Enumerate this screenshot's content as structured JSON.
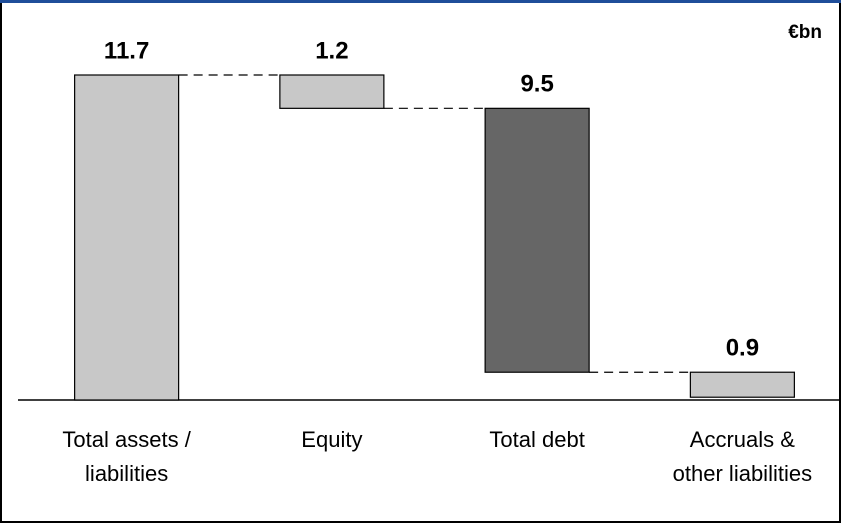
{
  "chart_data": {
    "type": "waterfall",
    "unit_label": "€bn",
    "categories": [
      [
        "Total assets /",
        "liabilities"
      ],
      [
        "Equity"
      ],
      [
        "Total debt"
      ],
      [
        "Accruals &",
        "other liabilities"
      ]
    ],
    "values": [
      11.7,
      1.2,
      9.5,
      0.9
    ],
    "colors": [
      "#c8c8c8",
      "#c8c8c8",
      "#666666",
      "#c8c8c8"
    ]
  }
}
